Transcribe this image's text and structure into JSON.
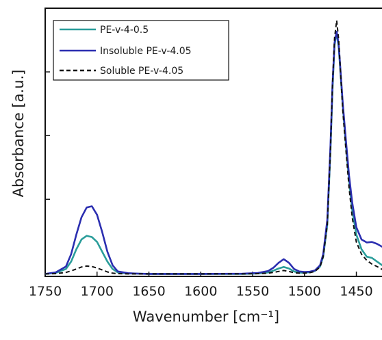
{
  "chart_data": {
    "type": "line",
    "xlabel": "Wavenumber [cm⁻¹]",
    "ylabel": "Absorbance [a.u.]",
    "xlim": [
      1750,
      1420
    ],
    "x_reversed": true,
    "ylim": [
      -0.01,
      1.08
    ],
    "x_ticks": [
      "1750",
      "1700",
      "1650",
      "1600",
      "1550",
      "1500",
      "1450"
    ],
    "x_tick_values": [
      1750,
      1700,
      1650,
      1600,
      1550,
      1500,
      1450
    ],
    "grid": false,
    "legend_position": "top-left",
    "series": [
      {
        "name": "PE-v-4-0.5",
        "color": "#2a9d9a",
        "dash": "solid",
        "x": [
          1750,
          1740,
          1730,
          1725,
          1720,
          1715,
          1710,
          1705,
          1700,
          1695,
          1690,
          1685,
          1680,
          1670,
          1660,
          1650,
          1600,
          1560,
          1545,
          1535,
          1530,
          1525,
          1520,
          1515,
          1510,
          1505,
          1500,
          1495,
          1490,
          1485,
          1482,
          1478,
          1475,
          1473,
          1471,
          1469,
          1467,
          1465,
          1463,
          1460,
          1457,
          1454,
          1450,
          1445,
          1440,
          1435,
          1430,
          1425,
          1420
        ],
        "y": [
          0.0,
          0.004,
          0.02,
          0.05,
          0.1,
          0.14,
          0.155,
          0.15,
          0.13,
          0.09,
          0.05,
          0.02,
          0.006,
          0.002,
          0.001,
          0.0,
          0.0,
          0.0,
          0.002,
          0.006,
          0.013,
          0.022,
          0.028,
          0.022,
          0.01,
          0.005,
          0.005,
          0.007,
          0.012,
          0.03,
          0.07,
          0.2,
          0.5,
          0.75,
          0.93,
          0.98,
          0.92,
          0.8,
          0.68,
          0.52,
          0.38,
          0.26,
          0.16,
          0.1,
          0.07,
          0.065,
          0.05,
          0.035,
          0.025
        ]
      },
      {
        "name": "Insoluble PE-v-4.05",
        "color": "#2b2eb0",
        "dash": "solid",
        "x": [
          1750,
          1740,
          1730,
          1725,
          1720,
          1715,
          1710,
          1705,
          1700,
          1695,
          1690,
          1685,
          1680,
          1670,
          1660,
          1650,
          1600,
          1560,
          1545,
          1535,
          1530,
          1525,
          1520,
          1515,
          1510,
          1505,
          1500,
          1495,
          1490,
          1485,
          1482,
          1478,
          1475,
          1473,
          1471,
          1469,
          1467,
          1465,
          1463,
          1460,
          1457,
          1454,
          1450,
          1445,
          1440,
          1435,
          1430,
          1425,
          1420
        ],
        "y": [
          0.0,
          0.006,
          0.03,
          0.08,
          0.16,
          0.23,
          0.27,
          0.275,
          0.24,
          0.17,
          0.09,
          0.035,
          0.01,
          0.003,
          0.001,
          0.0,
          0.0,
          0.001,
          0.004,
          0.012,
          0.025,
          0.045,
          0.06,
          0.045,
          0.02,
          0.01,
          0.008,
          0.009,
          0.014,
          0.035,
          0.08,
          0.22,
          0.52,
          0.77,
          0.94,
          0.985,
          0.93,
          0.81,
          0.69,
          0.54,
          0.4,
          0.29,
          0.19,
          0.14,
          0.128,
          0.13,
          0.122,
          0.11,
          0.1
        ]
      },
      {
        "name": "Soluble PE-v-4.05",
        "color": "#111111",
        "dash": "dashed",
        "x": [
          1750,
          1740,
          1730,
          1725,
          1720,
          1715,
          1710,
          1705,
          1700,
          1695,
          1690,
          1685,
          1680,
          1670,
          1660,
          1650,
          1600,
          1560,
          1545,
          1535,
          1530,
          1525,
          1520,
          1515,
          1510,
          1505,
          1500,
          1495,
          1490,
          1485,
          1482,
          1478,
          1475,
          1473,
          1471,
          1469,
          1467,
          1465,
          1463,
          1460,
          1457,
          1454,
          1450,
          1445,
          1440,
          1435,
          1430,
          1425,
          1420
        ],
        "y": [
          0.0,
          0.001,
          0.006,
          0.012,
          0.02,
          0.028,
          0.032,
          0.03,
          0.024,
          0.016,
          0.008,
          0.003,
          0.001,
          0.0,
          0.0,
          0.0,
          0.0,
          0.0,
          0.001,
          0.003,
          0.006,
          0.01,
          0.014,
          0.01,
          0.005,
          0.003,
          0.003,
          0.005,
          0.01,
          0.028,
          0.07,
          0.2,
          0.5,
          0.77,
          0.96,
          1.03,
          0.95,
          0.8,
          0.66,
          0.5,
          0.35,
          0.23,
          0.13,
          0.08,
          0.055,
          0.04,
          0.03,
          0.018,
          0.01
        ]
      }
    ]
  }
}
